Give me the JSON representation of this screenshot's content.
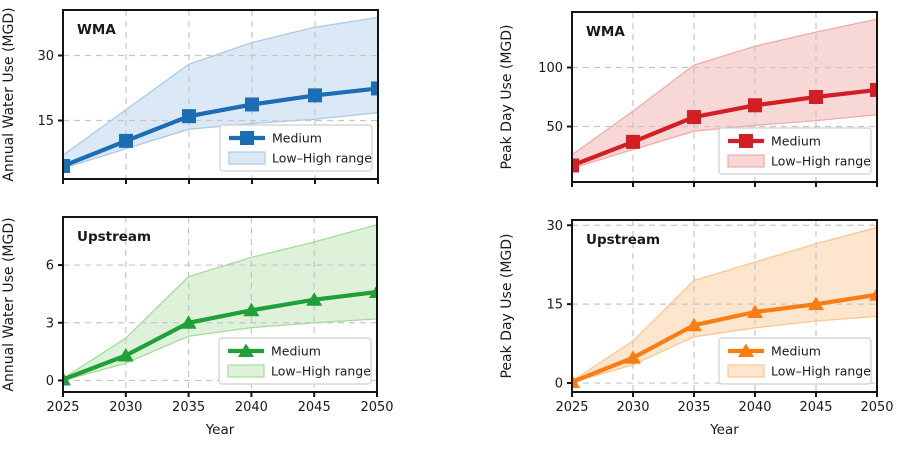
{
  "figure": {
    "background": "#ffffff",
    "xlabel": "Year",
    "x_tick_labels": [
      "2025",
      "2030",
      "2035",
      "2040",
      "2045",
      "2050"
    ]
  },
  "chart_data": [
    {
      "id": "annual-wma",
      "type": "line",
      "panel_label": "WMA",
      "ylabel": "Annual Water Use (MGD)",
      "xlabel": "",
      "x": [
        2025,
        2030,
        2035,
        2040,
        2045,
        2050
      ],
      "series": [
        {
          "name": "Medium",
          "marker": "square",
          "values": [
            4.5,
            10.3,
            16.0,
            18.7,
            20.8,
            22.4
          ]
        },
        {
          "name": "Low–High range",
          "band": true,
          "low": [
            4.0,
            8.5,
            13.0,
            14.3,
            15.3,
            16.8
          ],
          "high": [
            7.0,
            17.5,
            28.0,
            33.0,
            36.5,
            38.8
          ]
        }
      ],
      "yticks": [
        15,
        30
      ],
      "ylim": [
        1.5,
        40.5
      ],
      "grid": true,
      "legend_position": "lower right",
      "show_x_ticklabels": false,
      "colors": {
        "line": "#1b6db4",
        "band_fill": "#dbe8f6",
        "band_edge": "#a9cce9"
      }
    },
    {
      "id": "peak-wma",
      "type": "line",
      "panel_label": "WMA",
      "ylabel": "Peak Day Use (MGD)",
      "xlabel": "",
      "x": [
        2025,
        2030,
        2035,
        2040,
        2045,
        2050
      ],
      "series": [
        {
          "name": "Medium",
          "marker": "square",
          "values": [
            17,
            37,
            58,
            68,
            75,
            81
          ]
        },
        {
          "name": "Low–High range",
          "band": true,
          "low": [
            14.5,
            30.5,
            46,
            51,
            55,
            60
          ],
          "high": [
            26,
            63,
            102,
            118,
            130,
            141
          ]
        }
      ],
      "yticks": [
        50,
        100
      ],
      "ylim": [
        3,
        147
      ],
      "grid": true,
      "legend_position": "lower right",
      "show_x_ticklabels": false,
      "colors": {
        "line": "#d11f24",
        "band_fill": "#f8d8d6",
        "band_edge": "#f0aca9"
      }
    },
    {
      "id": "annual-upstream",
      "type": "line",
      "panel_label": "Upstream",
      "ylabel": "Annual Water Use (MGD)",
      "xlabel": "Year",
      "x": [
        2025,
        2030,
        2035,
        2040,
        2045,
        2050
      ],
      "series": [
        {
          "name": "Medium",
          "marker": "triangle",
          "values": [
            0.05,
            1.3,
            3.0,
            3.65,
            4.2,
            4.6
          ]
        },
        {
          "name": "Low–High range",
          "band": true,
          "low": [
            0.0,
            0.9,
            2.3,
            2.75,
            3.0,
            3.2
          ],
          "high": [
            0.1,
            2.2,
            5.4,
            6.4,
            7.2,
            8.1
          ]
        }
      ],
      "yticks": [
        0,
        3,
        6
      ],
      "ylim": [
        -0.6,
        8.5
      ],
      "grid": true,
      "legend_position": "lower right",
      "show_x_ticklabels": true,
      "colors": {
        "line": "#1fa038",
        "band_fill": "#def2d9",
        "band_edge": "#a5dc9b"
      }
    },
    {
      "id": "peak-upstream",
      "type": "line",
      "panel_label": "Upstream",
      "ylabel": "Peak Day Use (MGD)",
      "xlabel": "Year",
      "x": [
        2025,
        2030,
        2035,
        2040,
        2045,
        2050
      ],
      "series": [
        {
          "name": "Medium",
          "marker": "triangle",
          "values": [
            0.2,
            4.8,
            11.0,
            13.5,
            15.0,
            16.8
          ]
        },
        {
          "name": "Low–High range",
          "band": true,
          "low": [
            0.1,
            3.5,
            8.8,
            10.5,
            11.8,
            12.7
          ],
          "high": [
            0.4,
            8.0,
            19.5,
            23.0,
            26.5,
            29.6
          ]
        }
      ],
      "yticks": [
        0,
        15,
        30
      ],
      "ylim": [
        -1.7,
        31
      ],
      "grid": true,
      "legend_position": "lower right",
      "show_x_ticklabels": true,
      "colors": {
        "line": "#f97d13",
        "band_fill": "#fde6cd",
        "band_edge": "#fcc690"
      }
    }
  ]
}
